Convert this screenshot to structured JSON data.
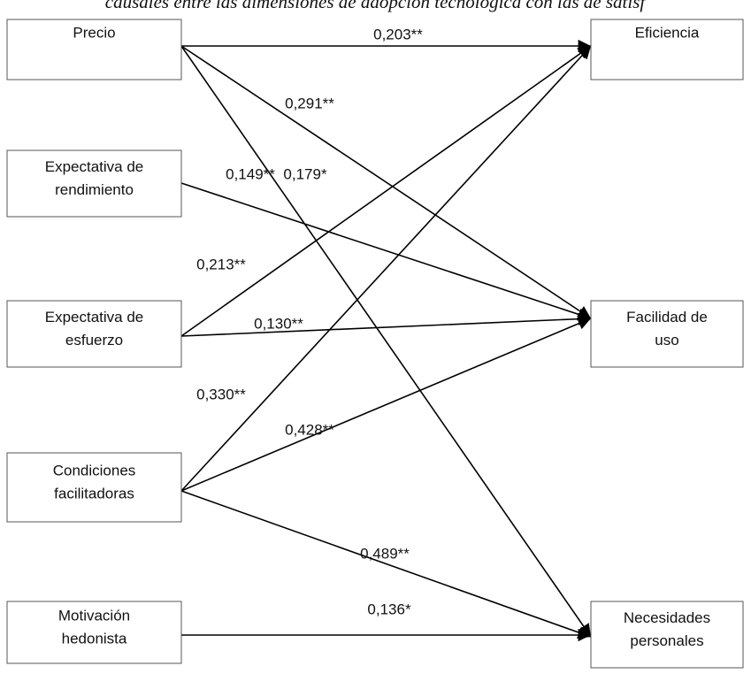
{
  "header": {
    "title": "causales entre las dimensiones de adopción tecnológica con las de satisf"
  },
  "nodes": [
    {
      "lines": [
        "Precio"
      ]
    },
    {
      "lines": [
        "Expectativa de",
        "rendimiento"
      ]
    },
    {
      "lines": [
        "Expectativa de",
        "esfuerzo"
      ]
    },
    {
      "lines": [
        "Condiciones",
        "facilitadoras"
      ]
    },
    {
      "lines": [
        "Motivación",
        "hedonista"
      ]
    },
    {
      "lines": [
        "Eficiencia"
      ]
    },
    {
      "lines": [
        "Facilidad de",
        "uso"
      ]
    },
    {
      "lines": [
        "Necesidades",
        "personales"
      ]
    }
  ],
  "edges": [
    {
      "label": "0,203**"
    },
    {
      "label": "0,291**"
    },
    {
      "label": "0,179*"
    },
    {
      "label": "0,149**"
    },
    {
      "label": "0,213**"
    },
    {
      "label": "0,130**"
    },
    {
      "label": "0,330**"
    },
    {
      "label": "0,428**"
    },
    {
      "label": "0,489**"
    },
    {
      "label": "0,136*"
    }
  ]
}
